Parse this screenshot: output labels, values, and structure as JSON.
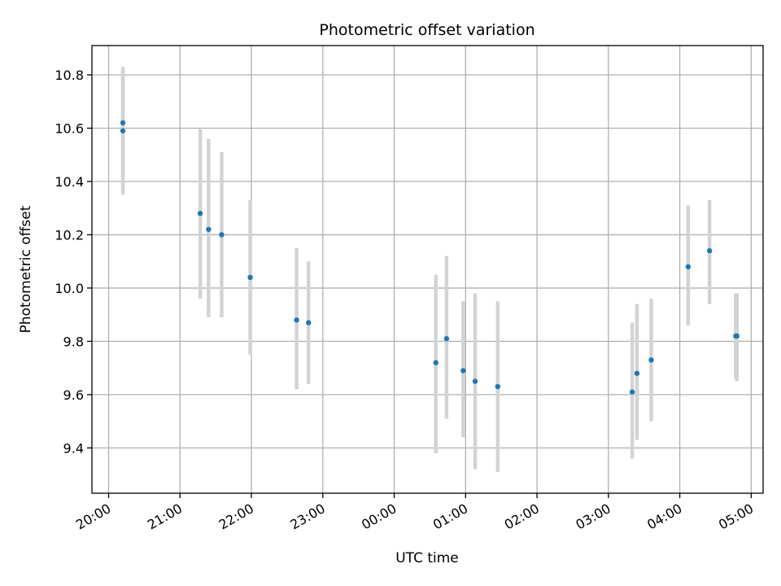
{
  "chart_data": {
    "type": "scatter",
    "title": "Photometric offset variation",
    "xlabel": "UTC time",
    "ylabel": "Photometric offset",
    "x_tick_labels": [
      "20:00",
      "21:00",
      "22:00",
      "23:00",
      "00:00",
      "01:00",
      "02:00",
      "03:00",
      "04:00",
      "05:00"
    ],
    "y_tick_labels": [
      "9.4",
      "9.6",
      "9.8",
      "10.0",
      "10.2",
      "10.4",
      "10.6",
      "10.8"
    ],
    "y_ticks": [
      9.4,
      9.6,
      9.8,
      10.0,
      10.2,
      10.4,
      10.6,
      10.8
    ],
    "xlim": [
      "19:46",
      "05:10"
    ],
    "ylim": [
      9.23,
      10.91
    ],
    "grid": true,
    "errorbar_color": "#d3d3d3",
    "marker_color": "#1f77b4",
    "series": [
      {
        "points": [
          {
            "t": "20:12",
            "y": 10.62,
            "lo": 10.42,
            "hi": 10.83
          },
          {
            "t": "20:12",
            "y": 10.59,
            "lo": 10.35,
            "hi": 10.83
          },
          {
            "t": "21:17",
            "y": 10.28,
            "lo": 9.96,
            "hi": 10.6
          },
          {
            "t": "21:24",
            "y": 10.22,
            "lo": 9.89,
            "hi": 10.56
          },
          {
            "t": "21:35",
            "y": 10.2,
            "lo": 9.89,
            "hi": 10.51
          },
          {
            "t": "21:59",
            "y": 10.04,
            "lo": 9.75,
            "hi": 10.33
          },
          {
            "t": "22:38",
            "y": 9.88,
            "lo": 9.62,
            "hi": 10.15
          },
          {
            "t": "22:48",
            "y": 9.87,
            "lo": 9.64,
            "hi": 10.1
          },
          {
            "t": "00:35",
            "y": 9.72,
            "lo": 9.38,
            "hi": 10.05
          },
          {
            "t": "00:44",
            "y": 9.81,
            "lo": 9.51,
            "hi": 10.12
          },
          {
            "t": "00:58",
            "y": 9.69,
            "lo": 9.44,
            "hi": 9.95
          },
          {
            "t": "01:08",
            "y": 9.65,
            "lo": 9.32,
            "hi": 9.98
          },
          {
            "t": "01:27",
            "y": 9.63,
            "lo": 9.31,
            "hi": 9.95
          },
          {
            "t": "03:20",
            "y": 9.61,
            "lo": 9.36,
            "hi": 9.87
          },
          {
            "t": "03:24",
            "y": 9.68,
            "lo": 9.43,
            "hi": 9.94
          },
          {
            "t": "03:36",
            "y": 9.73,
            "lo": 9.5,
            "hi": 9.96
          },
          {
            "t": "04:07",
            "y": 10.08,
            "lo": 9.86,
            "hi": 10.31
          },
          {
            "t": "04:25",
            "y": 10.14,
            "lo": 9.94,
            "hi": 10.33
          },
          {
            "t": "04:47",
            "y": 9.82,
            "lo": 9.66,
            "hi": 9.98
          },
          {
            "t": "04:48",
            "y": 9.82,
            "lo": 9.65,
            "hi": 9.98
          }
        ]
      }
    ]
  }
}
